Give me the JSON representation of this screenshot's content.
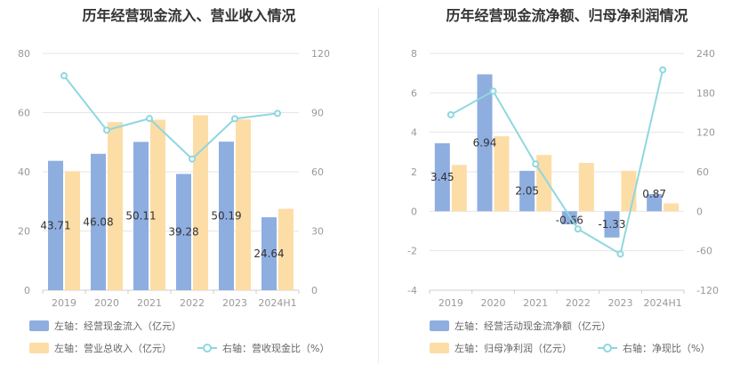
{
  "left": {
    "title": "历年经营现金流入、营业收入情况",
    "chart_data": {
      "type": "bar",
      "categories": [
        "2019",
        "2020",
        "2021",
        "2022",
        "2023",
        "2024H1"
      ],
      "series": [
        {
          "name": "左轴：经营现金流入（亿元）",
          "axis": "left",
          "values": [
            43.71,
            46.08,
            50.11,
            39.28,
            50.19,
            24.64
          ],
          "labels": [
            "43.71",
            "46.08",
            "50.11",
            "39.28",
            "50.19",
            "24.64"
          ],
          "color": "#8eaee0"
        },
        {
          "name": "左轴：营业总收入（亿元）",
          "axis": "left",
          "values": [
            40.2,
            56.8,
            57.6,
            59.1,
            57.7,
            27.5
          ],
          "color": "#fddda6"
        },
        {
          "name": "右轴：营收现金比（%）",
          "axis": "right",
          "type": "line",
          "values": [
            108.7,
            81.1,
            87.0,
            66.5,
            86.9,
            89.6
          ],
          "color": "#8fd7df"
        }
      ],
      "yleft": {
        "min": 0,
        "max": 80,
        "ticks": [
          "0",
          "20",
          "40",
          "60",
          "80"
        ]
      },
      "yright": {
        "min": 0,
        "max": 120,
        "ticks": [
          "0",
          "30",
          "60",
          "90",
          "120"
        ]
      },
      "grid": true,
      "legend": "bottom"
    }
  },
  "right": {
    "title": "历年经营现金流净额、归母净利润情况",
    "chart_data": {
      "type": "bar",
      "categories": [
        "2019",
        "2020",
        "2021",
        "2022",
        "2023",
        "2024H1"
      ],
      "series": [
        {
          "name": "左轴：经营活动现金流净额（亿元）",
          "axis": "left",
          "values": [
            3.45,
            6.94,
            2.05,
            -0.66,
            -1.33,
            0.87
          ],
          "labels": [
            "3.45",
            "6.94",
            "2.05",
            "-0.66",
            "-1.33",
            "0.87"
          ],
          "color": "#8eaee0"
        },
        {
          "name": "左轴：归母净利润（亿元）",
          "axis": "left",
          "values": [
            2.35,
            3.8,
            2.85,
            2.45,
            2.05,
            0.4
          ],
          "color": "#fddda6"
        },
        {
          "name": "右轴：净现比（%）",
          "axis": "right",
          "type": "line",
          "values": [
            146.8,
            182.6,
            71.9,
            -27.0,
            -65.0,
            215.0
          ],
          "color": "#8fd7df"
        }
      ],
      "yleft": {
        "min": -4,
        "max": 8,
        "ticks": [
          "-4",
          "-2",
          "0",
          "2",
          "4",
          "6",
          "8"
        ]
      },
      "yright": {
        "min": -120,
        "max": 240,
        "ticks": [
          "-120",
          "-60",
          "0",
          "60",
          "120",
          "180",
          "240"
        ]
      },
      "grid": true,
      "legend": "bottom"
    }
  }
}
